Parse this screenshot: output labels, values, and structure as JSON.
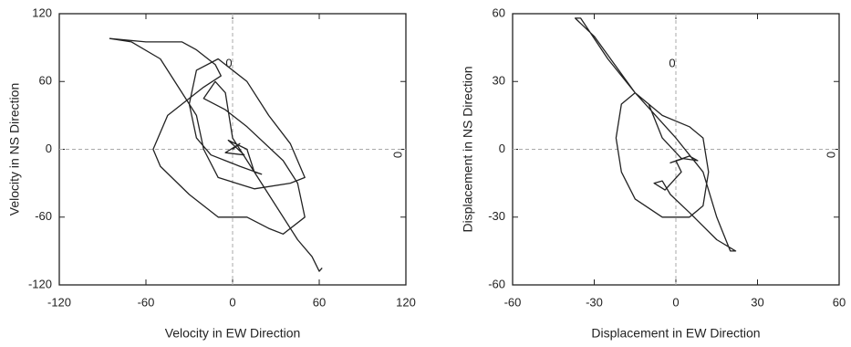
{
  "chart_data": [
    {
      "type": "line",
      "x_label": "Velocity in EW Direction",
      "y_label": "Velocity in NS Direction",
      "xlim": [
        -120,
        120
      ],
      "ylim": [
        -120,
        120
      ],
      "xticks": [
        -120,
        -60,
        0,
        60,
        120
      ],
      "yticks": [
        -120,
        -60,
        0,
        60,
        120
      ],
      "zero_lines": true,
      "annotations": [
        "0",
        "0"
      ],
      "color": "#222222",
      "x": [
        0,
        5,
        -5,
        8,
        -3,
        10,
        15,
        20,
        5,
        -15,
        -25,
        -30,
        -25,
        -10,
        10,
        25,
        40,
        50,
        40,
        15,
        -10,
        -20,
        -25,
        -35,
        -50,
        -70,
        -85,
        -60,
        -35,
        -25,
        -12,
        -8,
        -20,
        -30,
        -45,
        -55,
        -50,
        -30,
        -10,
        10,
        25,
        35,
        50,
        45,
        35,
        10,
        -5,
        -20,
        -12,
        -5,
        0,
        20,
        45,
        55,
        60,
        62
      ],
      "values": [
        0,
        5,
        -3,
        -5,
        8,
        0,
        -20,
        -22,
        -15,
        -5,
        10,
        40,
        70,
        80,
        60,
        30,
        5,
        -25,
        -30,
        -35,
        -25,
        0,
        30,
        50,
        80,
        95,
        98,
        95,
        95,
        88,
        75,
        65,
        55,
        45,
        30,
        0,
        -15,
        -40,
        -60,
        -60,
        -70,
        -75,
        -60,
        -30,
        -10,
        20,
        35,
        45,
        60,
        50,
        10,
        -30,
        -80,
        -95,
        -108,
        -105
      ]
    },
    {
      "type": "line",
      "x_label": "Displacement in EW Direction",
      "y_label": "Displacement in NS Direction",
      "xlim": [
        -60,
        60
      ],
      "ylim": [
        -60,
        60
      ],
      "xticks": [
        -60,
        -30,
        0,
        30,
        60
      ],
      "yticks": [
        -60,
        -30,
        0,
        30,
        60
      ],
      "zero_lines": true,
      "annotations": [
        "0",
        "0"
      ],
      "color": "#222222",
      "x": [
        0,
        3,
        -2,
        5,
        8,
        2,
        -5,
        -10,
        -15,
        -20,
        -22,
        -20,
        -15,
        -5,
        5,
        10,
        12,
        10,
        5,
        -5,
        -15,
        -25,
        -35,
        -37,
        -30,
        -15,
        0,
        10,
        15,
        20,
        22,
        15,
        5,
        -2,
        -5,
        -8,
        -4,
        2,
        0
      ],
      "values": [
        -5,
        -4,
        -6,
        -3,
        -5,
        -4,
        5,
        20,
        25,
        20,
        5,
        -10,
        -22,
        -30,
        -30,
        -25,
        -10,
        5,
        10,
        15,
        25,
        40,
        58,
        58,
        50,
        25,
        5,
        -10,
        -30,
        -45,
        -45,
        -40,
        -28,
        -20,
        -14,
        -15,
        -18,
        -10,
        -5
      ]
    }
  ]
}
